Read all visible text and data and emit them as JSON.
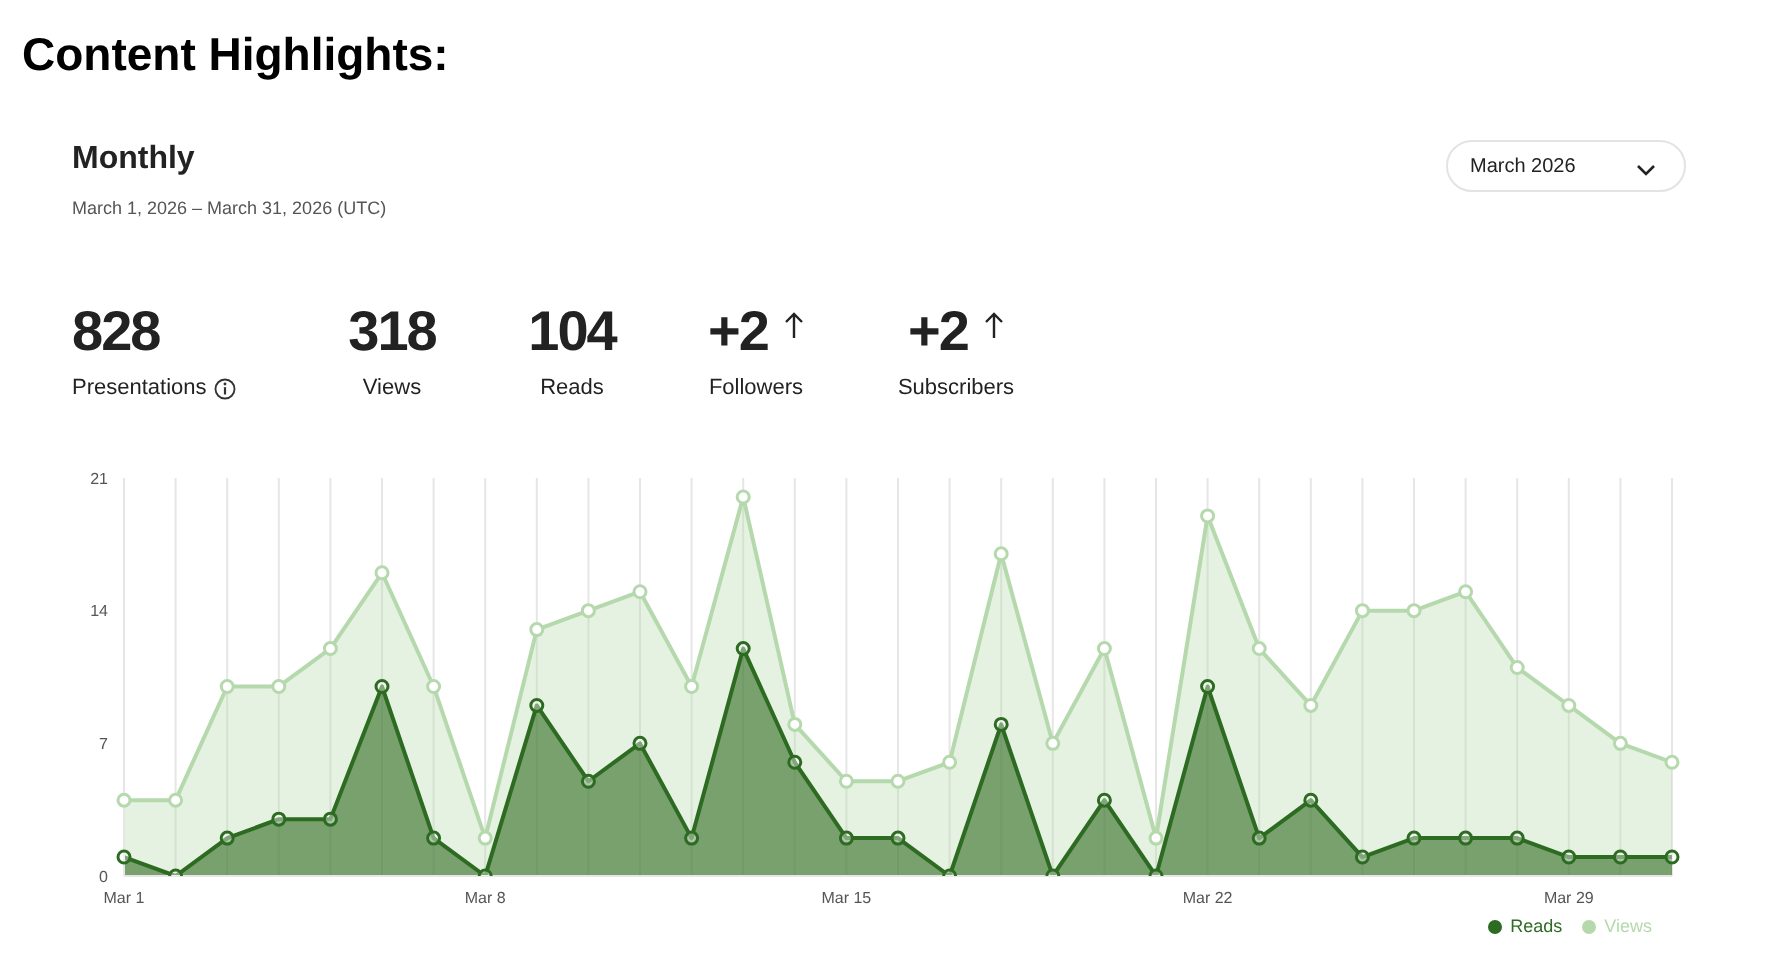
{
  "chart_data": {
    "type": "area",
    "title": "Content Highlights:",
    "subtitle": "Monthly",
    "annotations": [
      "March 1, 2026 – March 31, 2026 (UTC)",
      "828",
      "Presentations",
      "318",
      "Views",
      "104",
      "Reads",
      "+2",
      "Followers",
      "+2",
      "Subscribers",
      "March 2026"
    ],
    "categories": [
      "Mar 1",
      null,
      null,
      null,
      null,
      null,
      null,
      "Mar 8",
      null,
      null,
      null,
      null,
      null,
      null,
      "Mar 15",
      null,
      null,
      null,
      null,
      null,
      null,
      "Mar 22",
      null,
      null,
      null,
      null,
      null,
      null,
      "Mar 29",
      null,
      null
    ],
    "series": [
      {
        "name": "Views",
        "color": "#b5d9ad",
        "values": [
          4,
          4,
          10,
          10,
          12,
          16,
          10,
          2,
          13,
          14,
          15,
          10,
          20,
          8,
          5,
          5,
          6,
          17,
          7,
          12,
          2,
          19,
          12,
          9,
          14,
          14,
          15,
          11,
          9,
          7,
          6
        ]
      },
      {
        "name": "Reads",
        "color": "#2e6b22",
        "values": [
          1,
          0,
          2,
          3,
          3,
          10,
          2,
          0,
          9,
          5,
          7,
          2,
          12,
          6,
          2,
          2,
          0,
          8,
          0,
          4,
          0,
          10,
          2,
          4,
          1,
          2,
          2,
          2,
          1,
          1,
          1
        ]
      }
    ],
    "ylim": [
      0,
      21
    ],
    "yticks": [
      0,
      7,
      14,
      21
    ],
    "grid": "x",
    "legend": "bottom right",
    "marker": "circle",
    "line_style": "solid"
  }
}
